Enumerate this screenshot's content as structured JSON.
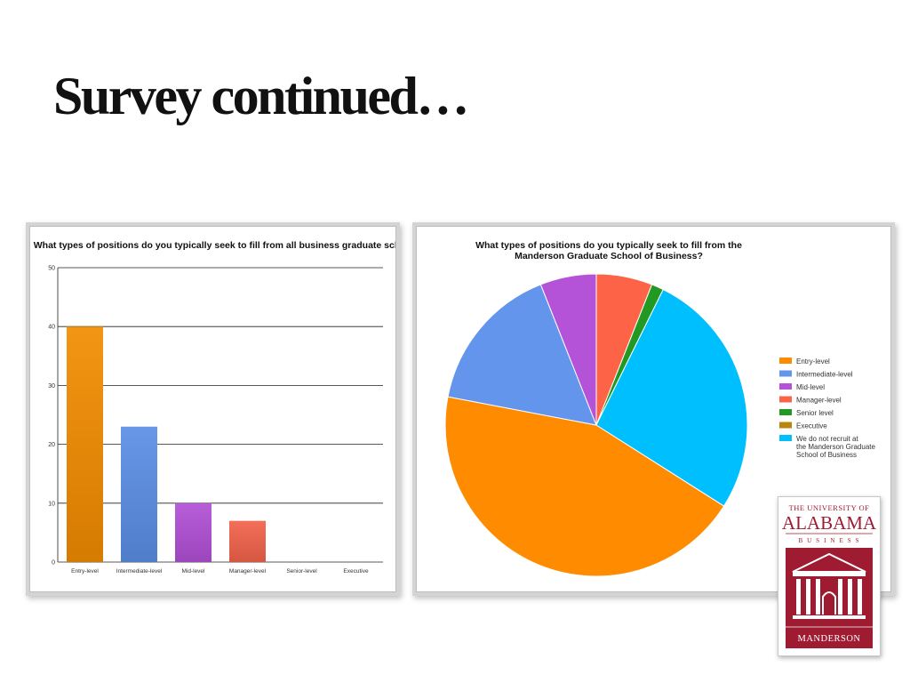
{
  "slide": {
    "title": "Survey continued…"
  },
  "chart_data": [
    {
      "type": "bar",
      "title": "What types of positions do you typically seek to fill from all business graduate schools?",
      "categories": [
        "Entry-level",
        "Intermediate-level",
        "Mid-level",
        "Manager-level",
        "Senior-level",
        "Executive"
      ],
      "values": [
        40,
        23,
        10,
        7,
        0,
        0
      ],
      "colors": [
        "#f28c00",
        "#5b8ee6",
        "#b150d6",
        "#f2634b",
        "#2a9a2a",
        "#c8960c"
      ],
      "yticks": [
        "0",
        "10",
        "20",
        "30",
        "40",
        "50"
      ],
      "ylim": [
        0,
        50
      ],
      "xlabel": "",
      "ylabel": "",
      "grid": true,
      "legend": "none"
    },
    {
      "type": "pie",
      "title_lines": [
        "What types of positions do you typically seek to fill from the",
        "Manderson Graduate School of Business?"
      ],
      "labels": [
        "Entry-level",
        "Intermediate-level",
        "Mid-level",
        "Manager-level",
        "Senior level",
        "Executive",
        "We do not recruit at the Manderson Graduate School of Business"
      ],
      "legend_lines": [
        [
          "Entry-level"
        ],
        [
          "Intermediate-level"
        ],
        [
          "Mid-level"
        ],
        [
          "Manager-level"
        ],
        [
          "Senior level"
        ],
        [
          "Executive"
        ],
        [
          "We do not recruit at",
          "the Manderson Graduate",
          "School of Business"
        ]
      ],
      "values": [
        44,
        16,
        6,
        6,
        1.3,
        0,
        26.7
      ],
      "colors": [
        "#ff8c00",
        "#6495ed",
        "#b452d8",
        "#fc6347",
        "#229922",
        "#b8860b",
        "#00bfff"
      ],
      "legend": "right"
    }
  ],
  "logo": {
    "top_text": "THE UNIVERSITY OF",
    "main_text": "ALABAMA",
    "sub_text": "BUSINESS",
    "bottom_text": "MANDERSON",
    "brand_color": "#9e1b32"
  }
}
